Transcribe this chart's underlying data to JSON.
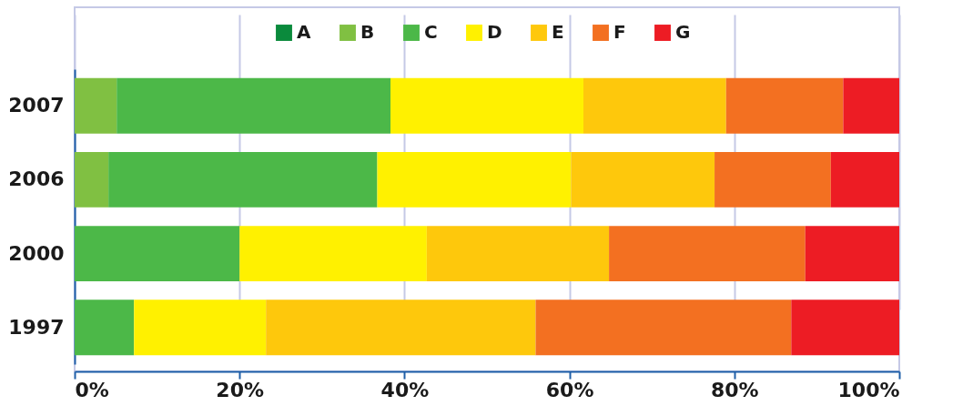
{
  "chart_data": {
    "type": "bar",
    "orientation": "horizontal",
    "stacked": true,
    "categories": [
      "2007",
      "2006",
      "2000",
      "1997"
    ],
    "series": [
      {
        "name": "A",
        "color": "#0a8a3c",
        "values": [
          null,
          null,
          null,
          null
        ]
      },
      {
        "name": "B",
        "color": "#80c042",
        "values": [
          5.1,
          4.1,
          null,
          null
        ]
      },
      {
        "name": "C",
        "color": "#4cb848",
        "values": [
          33.2,
          32.6,
          20.0,
          7.2
        ]
      },
      {
        "name": "D",
        "color": "#fff100",
        "values": [
          23.4,
          23.5,
          22.7,
          16.0
        ]
      },
      {
        "name": "E",
        "color": "#fec80c",
        "values": [
          17.3,
          17.4,
          22.1,
          32.7
        ]
      },
      {
        "name": "F",
        "color": "#f37021",
        "values": [
          14.2,
          14.1,
          23.8,
          31.0
        ]
      },
      {
        "name": "G",
        "color": "#ed1c24",
        "values": [
          6.8,
          8.3,
          11.4,
          13.1
        ]
      }
    ],
    "xlim": [
      0,
      100
    ],
    "xticks": [
      {
        "value": 0,
        "label": "0%"
      },
      {
        "value": 20,
        "label": "20%"
      },
      {
        "value": 40,
        "label": "40%"
      },
      {
        "value": 60,
        "label": "60%"
      },
      {
        "value": 80,
        "label": "80%"
      },
      {
        "value": 100,
        "label": "100%"
      }
    ],
    "grid": "x",
    "legend": "top"
  }
}
